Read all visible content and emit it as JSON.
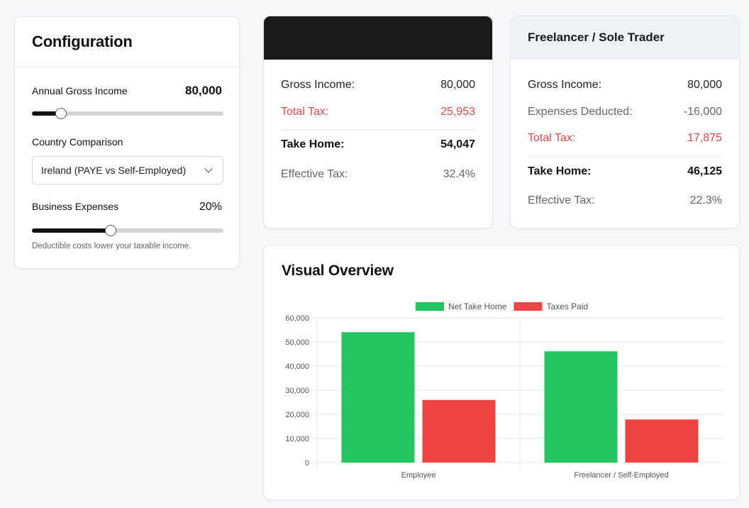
{
  "config": {
    "title": "Configuration",
    "income": {
      "label": "Annual Gross Income",
      "value": "80,000",
      "slider_fraction": 0.15
    },
    "country": {
      "label": "Country Comparison",
      "selected": "Ireland (PAYE vs Self-Employed)"
    },
    "expenses": {
      "label": "Business Expenses",
      "value": "20%",
      "slider_fraction": 0.41
    },
    "hint": "Deductible costs lower your taxable income."
  },
  "employee": {
    "gross_label": "Gross Income:",
    "gross": "80,000",
    "tax_label": "Total Tax:",
    "tax": "25,953",
    "take_label": "Take Home:",
    "take": "54,047",
    "eff_label": "Effective Tax:",
    "eff": "32.4%"
  },
  "freelancer": {
    "title": "Freelancer / Sole Trader",
    "gross_label": "Gross Income:",
    "gross": "80,000",
    "exp_label": "Expenses Deducted:",
    "exp": "-16,000",
    "tax_label": "Total Tax:",
    "tax": "17,875",
    "take_label": "Take Home:",
    "take": "46,125",
    "eff_label": "Effective Tax:",
    "eff": "22.3%"
  },
  "chart_title": "Visual Overview",
  "chart_data": {
    "type": "bar",
    "categories": [
      "Employee",
      "Freelancer / Self-Employed"
    ],
    "series": [
      {
        "name": "Net Take Home",
        "values": [
          54047,
          46125
        ],
        "color": "#22c55e"
      },
      {
        "name": "Taxes Paid",
        "values": [
          25953,
          17875
        ],
        "color": "#ef4444"
      }
    ],
    "ylim": [
      0,
      60000
    ],
    "yticks": [
      "60,000",
      "50,000",
      "40,000",
      "30,000",
      "20,000",
      "10,000",
      "0"
    ],
    "legend": "top-center",
    "grid": true
  }
}
